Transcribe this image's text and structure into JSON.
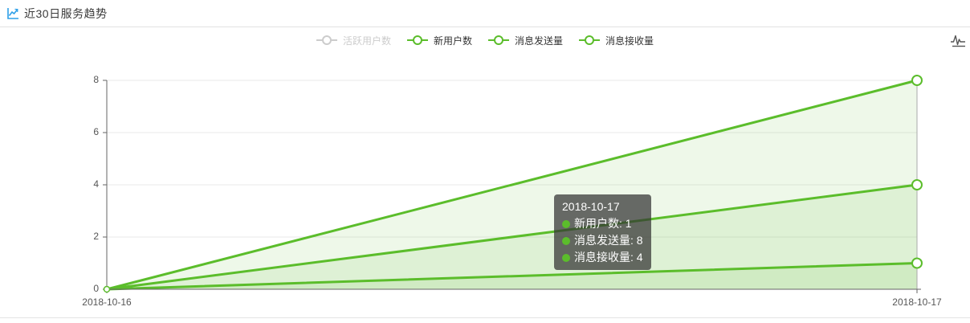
{
  "header": {
    "title": "近30日服务趋势"
  },
  "legend": {
    "items": [
      {
        "label": "活跃用户数",
        "enabled": false
      },
      {
        "label": "新用户数",
        "enabled": true
      },
      {
        "label": "消息发送量",
        "enabled": true
      },
      {
        "label": "消息接收量",
        "enabled": true
      }
    ]
  },
  "tooltip": {
    "title": "2018-10-17",
    "rows": [
      {
        "text": "新用户数: 1"
      },
      {
        "text": "消息发送量: 8"
      },
      {
        "text": "消息接收量: 4"
      }
    ]
  },
  "colors": {
    "series_green": "#5bbd2b",
    "disabled_legend": "#cccccc",
    "title_icon_blue": "#2d9fe8",
    "tooltip_bg": "rgba(50,50,50,0.72)",
    "axis_line": "#666666",
    "grid_line": "#e9e9e9",
    "area_fill": "rgba(91,189,43,0.10)",
    "axis_pointer": "#aaaaaa",
    "toolbox_gray": "#555555"
  },
  "chart_data": {
    "type": "line",
    "x": [
      "2018-10-16",
      "2018-10-17"
    ],
    "series": [
      {
        "name": "新用户数",
        "values": [
          0,
          1
        ]
      },
      {
        "name": "消息发送量",
        "values": [
          0,
          8
        ]
      },
      {
        "name": "消息接收量",
        "values": [
          0,
          4
        ]
      }
    ],
    "disabled_series": [
      "活跃用户数"
    ],
    "title": "近30日服务趋势",
    "xlabel": "",
    "ylabel": "",
    "ylim": [
      0,
      8
    ],
    "yticks": [
      0,
      2,
      4,
      6,
      8
    ],
    "grid": true,
    "area": true,
    "legend_position": "top-center",
    "hover_x": "2018-10-17"
  }
}
